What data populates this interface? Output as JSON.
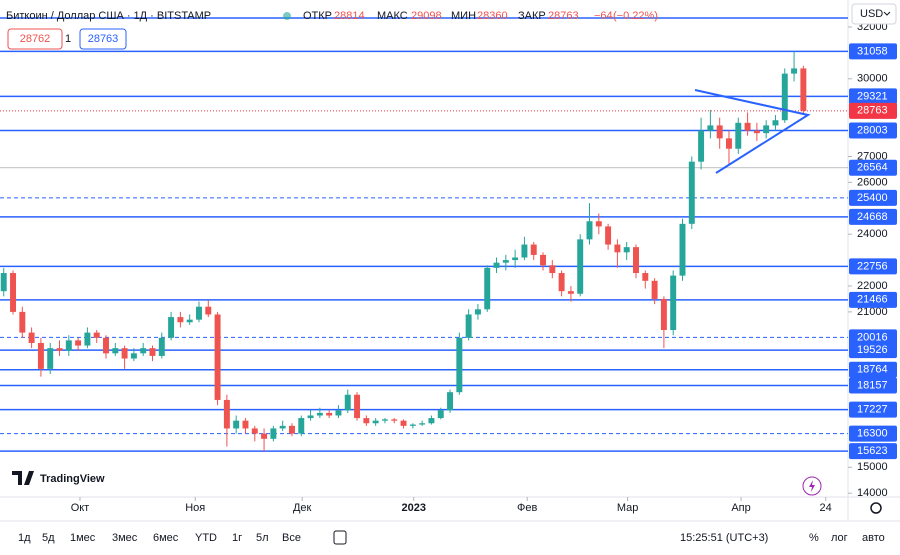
{
  "header": {
    "symbol": "Биткоин / Доллар США · 1Д · BITSTAMP",
    "open_label": "ОТКР",
    "open": 28814,
    "high_label": "МАКС",
    "high": 29098,
    "low_label": "МИН",
    "low": 28360,
    "close_label": "ЗАКР",
    "close": 28763,
    "change": "−64",
    "change_pct": "(−0.22%)",
    "bid": 28762,
    "spread": 1,
    "ask": 28763,
    "currency": "USD"
  },
  "logo": "TradingView",
  "chart_data": {
    "type": "candlestick",
    "up_color": "#26a69a",
    "down_color": "#ef5350",
    "candles": [
      [
        21800,
        22700,
        21600,
        22500
      ],
      [
        22500,
        22600,
        20900,
        21000
      ],
      [
        21000,
        21200,
        20000,
        20200
      ],
      [
        20200,
        20400,
        19600,
        19800
      ],
      [
        19800,
        20000,
        18500,
        18800
      ],
      [
        18800,
        19800,
        18600,
        19600
      ],
      [
        19600,
        19900,
        19300,
        19500
      ],
      [
        19500,
        20100,
        19300,
        19900
      ],
      [
        19900,
        20000,
        19500,
        19700
      ],
      [
        19700,
        20400,
        19600,
        20200
      ],
      [
        20200,
        20300,
        19800,
        20000
      ],
      [
        20000,
        20100,
        19200,
        19400
      ],
      [
        19400,
        19800,
        19300,
        19600
      ],
      [
        19600,
        19700,
        18800,
        19200
      ],
      [
        19200,
        19600,
        19100,
        19400
      ],
      [
        19400,
        19800,
        19300,
        19600
      ],
      [
        19600,
        19700,
        19100,
        19300
      ],
      [
        19300,
        20200,
        19200,
        20000
      ],
      [
        20000,
        21000,
        19900,
        20800
      ],
      [
        20800,
        21000,
        20400,
        20600
      ],
      [
        20600,
        20900,
        20500,
        20700
      ],
      [
        20700,
        21400,
        20600,
        21200
      ],
      [
        21200,
        21450,
        20800,
        20900
      ],
      [
        20900,
        21000,
        17400,
        17600
      ],
      [
        17600,
        17800,
        15800,
        16500
      ],
      [
        16500,
        17000,
        16300,
        16800
      ],
      [
        16800,
        16900,
        16300,
        16500
      ],
      [
        16500,
        16600,
        16000,
        16300
      ],
      [
        16300,
        16500,
        15600,
        16100
      ],
      [
        16100,
        16600,
        16000,
        16500
      ],
      [
        16500,
        16800,
        16400,
        16600
      ],
      [
        16600,
        16700,
        16200,
        16300
      ],
      [
        16300,
        17000,
        16200,
        16900
      ],
      [
        16900,
        17200,
        16800,
        17000
      ],
      [
        17000,
        17300,
        16900,
        17100
      ],
      [
        17100,
        17200,
        16900,
        17000
      ],
      [
        17000,
        17400,
        16900,
        17200
      ],
      [
        17200,
        18000,
        17100,
        17800
      ],
      [
        17800,
        17900,
        16800,
        16900
      ],
      [
        16900,
        17000,
        16600,
        16700
      ],
      [
        16700,
        16900,
        16600,
        16800
      ],
      [
        16800,
        16900,
        16700,
        16850
      ],
      [
        16850,
        16900,
        16700,
        16800
      ],
      [
        16800,
        16850,
        16500,
        16600
      ],
      [
        16600,
        16700,
        16500,
        16650
      ],
      [
        16650,
        16800,
        16600,
        16700
      ],
      [
        16700,
        17000,
        16650,
        16900
      ],
      [
        16900,
        17300,
        16850,
        17200
      ],
      [
        17200,
        18000,
        17100,
        17900
      ],
      [
        17900,
        20200,
        17800,
        20000
      ],
      [
        20000,
        21100,
        19900,
        20900
      ],
      [
        20900,
        21300,
        20700,
        21100
      ],
      [
        21100,
        22800,
        21000,
        22700
      ],
      [
        22700,
        23100,
        22500,
        22900
      ],
      [
        22900,
        23200,
        22600,
        23000
      ],
      [
        23000,
        23400,
        22700,
        23100
      ],
      [
        23100,
        23900,
        23000,
        23600
      ],
      [
        23600,
        23700,
        23000,
        23200
      ],
      [
        23200,
        23300,
        22600,
        22800
      ],
      [
        22800,
        23000,
        22300,
        22500
      ],
      [
        22500,
        22600,
        21600,
        21800
      ],
      [
        21800,
        22000,
        21400,
        21700
      ],
      [
        21700,
        24000,
        21600,
        23800
      ],
      [
        23800,
        25200,
        23600,
        24500
      ],
      [
        24500,
        24800,
        24000,
        24300
      ],
      [
        24300,
        24400,
        23400,
        23600
      ],
      [
        23600,
        23800,
        22700,
        23300
      ],
      [
        23300,
        23700,
        23000,
        23500
      ],
      [
        23500,
        23600,
        22300,
        22500
      ],
      [
        22500,
        22600,
        21900,
        22200
      ],
      [
        22200,
        22300,
        21300,
        21500
      ],
      [
        21500,
        21600,
        19600,
        20300
      ],
      [
        20300,
        22600,
        20100,
        22400
      ],
      [
        22400,
        24600,
        22200,
        24400
      ],
      [
        24400,
        27000,
        24200,
        26800
      ],
      [
        26800,
        28500,
        26500,
        28000
      ],
      [
        28000,
        28800,
        27700,
        28200
      ],
      [
        28200,
        28500,
        27300,
        27700
      ],
      [
        27700,
        28000,
        26700,
        27300
      ],
      [
        27300,
        28500,
        27100,
        28300
      ],
      [
        28300,
        28700,
        27800,
        28000
      ],
      [
        28000,
        28300,
        27600,
        27900
      ],
      [
        27900,
        28400,
        27700,
        28200
      ],
      [
        28200,
        28600,
        28000,
        28400
      ],
      [
        28400,
        30400,
        28300,
        30200
      ],
      [
        30200,
        31058,
        29900,
        30400
      ],
      [
        30400,
        30500,
        28600,
        28763
      ]
    ],
    "xlim": [
      -0.4,
      90.8
    ],
    "xticks": [
      {
        "value": 8.2,
        "label": "Окт"
      },
      {
        "value": 20.6,
        "label": "Ноя"
      },
      {
        "value": 32.1,
        "label": "Дек"
      },
      {
        "value": 44.1,
        "label": "2023"
      },
      {
        "value": 56.3,
        "label": "Фев"
      },
      {
        "value": 67.1,
        "label": "Мар"
      },
      {
        "value": 79.3,
        "label": "Апр"
      },
      {
        "value": 88.4,
        "label": "24"
      }
    ],
    "ylim": [
      13737,
      33042
    ],
    "yticks": [
      32000,
      30000,
      27000,
      26000,
      24000,
      22000,
      21000,
      15000,
      14000
    ],
    "levels": [
      {
        "price": 31058,
        "style": "solid"
      },
      {
        "price": 29321,
        "style": "solid"
      },
      {
        "price": 28003,
        "style": "solid"
      },
      {
        "price": 26564,
        "style": "thin"
      },
      {
        "price": 25400,
        "style": "dashed"
      },
      {
        "price": 24668,
        "style": "solid"
      },
      {
        "price": 22756,
        "style": "solid"
      },
      {
        "price": 21466,
        "style": "solid"
      },
      {
        "price": 20016,
        "style": "dashed"
      },
      {
        "price": 19526,
        "style": "solid"
      },
      {
        "price": 18764,
        "style": "solid"
      },
      {
        "price": 18157,
        "style": "solid"
      },
      {
        "price": 17227,
        "style": "solid"
      },
      {
        "price": 16300,
        "style": "dashed"
      },
      {
        "price": 15623,
        "style": "solid"
      }
    ],
    "last_price": 28763,
    "level_color": "#2962ff",
    "last_color": "#f23645"
  },
  "toolbar": {
    "ranges": [
      "1д",
      "5д",
      "1мес",
      "3мес",
      "6мес",
      "YTD",
      "1г",
      "5л",
      "Все"
    ],
    "time": "15:25:51 (UTC+3)",
    "percent": "%",
    "log": "лог",
    "auto": "авто"
  }
}
